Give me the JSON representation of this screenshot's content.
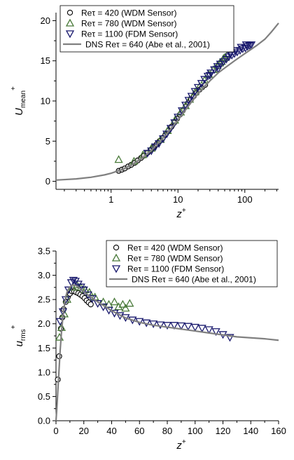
{
  "chart_data": [
    {
      "type": "scatter",
      "x_scale": "log",
      "xlim": [
        0.15,
        320
      ],
      "ylim": [
        -1,
        21
      ],
      "x_ticks": [
        1,
        10,
        100
      ],
      "y_ticks": [
        0,
        5,
        10,
        15,
        20
      ],
      "x_tick_labels": [
        "1",
        "10",
        "100"
      ],
      "y_tick_labels": [
        "0",
        "5",
        "10",
        "15",
        "20"
      ],
      "xlabel": "z",
      "xlabel_sup": "+",
      "ylabel": "U",
      "ylabel_sub": "mean",
      "ylabel_sup": "+",
      "legend_position": "top-left",
      "series": [
        {
          "name": "Reτ = 420 (WDM Sensor)",
          "marker": "circle",
          "color": "#000000",
          "fill": "#d0d0d0",
          "points": [
            [
              1.3,
              1.3
            ],
            [
              1.45,
              1.45
            ],
            [
              1.6,
              1.6
            ],
            [
              1.8,
              1.85
            ],
            [
              2.0,
              2.05
            ],
            [
              2.25,
              2.3
            ],
            [
              2.5,
              2.6
            ],
            [
              2.8,
              2.9
            ],
            [
              3.1,
              3.2
            ],
            [
              3.5,
              3.55
            ],
            [
              3.9,
              3.9
            ],
            [
              4.3,
              4.2
            ],
            [
              4.8,
              4.6
            ],
            [
              5.3,
              5.0
            ],
            [
              5.9,
              5.4
            ],
            [
              6.5,
              5.8
            ],
            [
              7.2,
              6.3
            ],
            [
              8.0,
              6.8
            ],
            [
              8.8,
              7.3
            ],
            [
              9.7,
              7.8
            ],
            [
              10.7,
              8.3
            ],
            [
              11.8,
              8.8
            ],
            [
              13.0,
              9.3
            ],
            [
              14.3,
              9.8
            ],
            [
              15.7,
              10.2
            ],
            [
              17.3,
              10.6
            ],
            [
              19.0,
              11.0
            ],
            [
              21.0,
              11.4
            ],
            [
              23.0,
              11.7
            ],
            [
              25.5,
              12.0
            ]
          ]
        },
        {
          "name": "Reτ = 780 (WDM Sensor)",
          "marker": "triangle-up",
          "color": "#4a7a3a",
          "points": [
            [
              1.3,
              2.7
            ],
            [
              2.2,
              2.5
            ],
            [
              3.0,
              3.3
            ],
            [
              4.0,
              4.1
            ],
            [
              5.5,
              5.2
            ],
            [
              7.0,
              6.3
            ],
            [
              9.0,
              7.6
            ],
            [
              11.0,
              8.6
            ],
            [
              13.0,
              9.4
            ],
            [
              15.0,
              10.2
            ],
            [
              18.0,
              11.1
            ],
            [
              21.0,
              11.8
            ],
            [
              25.0,
              12.6
            ],
            [
              29.0,
              13.3
            ],
            [
              34.0,
              13.9
            ],
            [
              39.0,
              14.4
            ],
            [
              45.0,
              14.9
            ],
            [
              50.0,
              15.4
            ],
            [
              55.0,
              15.8
            ],
            [
              48.0,
              15.3
            ],
            [
              42.0,
              14.7
            ]
          ]
        },
        {
          "name": "Reτ = 1100 (FDM Sensor)",
          "marker": "triangle-down",
          "color": "#1a1a6e",
          "points": [
            [
              3.5,
              3.5
            ],
            [
              4.0,
              3.8
            ],
            [
              4.6,
              4.3
            ],
            [
              5.2,
              4.7
            ],
            [
              6.0,
              5.3
            ],
            [
              6.8,
              5.9
            ],
            [
              7.8,
              6.6
            ],
            [
              8.9,
              7.3
            ],
            [
              10.0,
              8.0
            ],
            [
              11.5,
              8.8
            ],
            [
              13.0,
              9.5
            ],
            [
              14.5,
              10.1
            ],
            [
              16.0,
              10.6
            ],
            [
              18.0,
              11.2
            ],
            [
              20.0,
              11.7
            ],
            [
              22.5,
              12.2
            ],
            [
              25.0,
              12.7
            ],
            [
              28.0,
              13.1
            ],
            [
              31.0,
              13.5
            ],
            [
              35.0,
              13.9
            ],
            [
              39.0,
              14.3
            ],
            [
              43.0,
              14.6
            ],
            [
              48.0,
              14.9
            ],
            [
              53.0,
              15.2
            ],
            [
              58.0,
              15.5
            ],
            [
              64.0,
              15.7
            ],
            [
              70.0,
              15.9
            ],
            [
              77.0,
              16.1
            ],
            [
              85.0,
              16.3
            ],
            [
              93.0,
              16.5
            ],
            [
              102.0,
              16.6
            ],
            [
              110.0,
              16.8
            ],
            [
              118.0,
              16.9
            ],
            [
              125.0,
              17.0
            ],
            [
              60.0,
              15.9
            ],
            [
              72.0,
              16.3
            ],
            [
              88.0,
              16.7
            ],
            [
              105.0,
              17.0
            ],
            [
              40.0,
              14.0
            ],
            [
              30.0,
              13.2
            ]
          ]
        },
        {
          "name": "DNS Reτ = 640 (Abe et al., 2001)",
          "type": "line",
          "color": "#808080",
          "points": [
            [
              0.15,
              0.15
            ],
            [
              0.3,
              0.3
            ],
            [
              0.5,
              0.5
            ],
            [
              0.8,
              0.8
            ],
            [
              1.0,
              1.0
            ],
            [
              1.5,
              1.5
            ],
            [
              2.0,
              2.0
            ],
            [
              3.0,
              2.95
            ],
            [
              4.0,
              3.85
            ],
            [
              5.0,
              4.7
            ],
            [
              6.0,
              5.4
            ],
            [
              8.0,
              6.6
            ],
            [
              10.0,
              7.6
            ],
            [
              12.0,
              8.5
            ],
            [
              15.0,
              9.6
            ],
            [
              20.0,
              10.9
            ],
            [
              25.0,
              11.8
            ],
            [
              30.0,
              12.5
            ],
            [
              40.0,
              13.5
            ],
            [
              50.0,
              14.1
            ],
            [
              70.0,
              15.0
            ],
            [
              100.0,
              15.9
            ],
            [
              150.0,
              16.9
            ],
            [
              200.0,
              17.7
            ],
            [
              250.0,
              18.6
            ],
            [
              320.0,
              19.7
            ]
          ]
        }
      ]
    },
    {
      "type": "scatter",
      "xlim": [
        0,
        160
      ],
      "ylim": [
        0,
        3.5
      ],
      "x_ticks": [
        0,
        20,
        40,
        60,
        80,
        100,
        120,
        140,
        160
      ],
      "y_ticks": [
        0.0,
        0.5,
        1.0,
        1.5,
        2.0,
        2.5,
        3.0,
        3.5
      ],
      "x_tick_labels": [
        "0",
        "20",
        "40",
        "60",
        "80",
        "100",
        "120",
        "140",
        "160"
      ],
      "y_tick_labels": [
        "0.0",
        "0.5",
        "1.0",
        "1.5",
        "2.0",
        "2.5",
        "3.0",
        "3.5"
      ],
      "xlabel": "z",
      "xlabel_sup": "+",
      "ylabel": "u",
      "ylabel_sub": "rms",
      "ylabel_sup": "+",
      "legend_position": "top-right",
      "series": [
        {
          "name": "Reτ = 420 (WDM Sensor)",
          "marker": "circle",
          "color": "#000000",
          "fill": "#ffffff",
          "points": [
            [
              1.3,
              0.85
            ],
            [
              2.3,
              1.33
            ],
            [
              3.5,
              1.9
            ],
            [
              4.5,
              2.13
            ],
            [
              5.5,
              2.3
            ],
            [
              7.0,
              2.45
            ],
            [
              8.5,
              2.55
            ],
            [
              10.0,
              2.62
            ],
            [
              11.5,
              2.67
            ],
            [
              13.0,
              2.67
            ],
            [
              14.5,
              2.65
            ],
            [
              16.0,
              2.63
            ],
            [
              17.5,
              2.6
            ],
            [
              19.0,
              2.57
            ],
            [
              20.5,
              2.53
            ],
            [
              22.0,
              2.48
            ],
            [
              23.5,
              2.44
            ],
            [
              25.0,
              2.4
            ]
          ]
        },
        {
          "name": "Reτ = 780 (WDM Sensor)",
          "marker": "triangle-up",
          "color": "#4a7a3a",
          "points": [
            [
              2.5,
              1.72
            ],
            [
              4.0,
              1.92
            ],
            [
              6.0,
              2.2
            ],
            [
              8.0,
              2.5
            ],
            [
              12.0,
              2.75
            ],
            [
              15.0,
              2.8
            ],
            [
              18.0,
              2.75
            ],
            [
              21.0,
              2.7
            ],
            [
              24.0,
              2.65
            ],
            [
              28.0,
              2.55
            ],
            [
              34.0,
              2.45
            ],
            [
              38.0,
              2.4
            ],
            [
              42.0,
              2.45
            ],
            [
              45.0,
              2.35
            ],
            [
              48.0,
              2.4
            ],
            [
              50.0,
              2.32
            ],
            [
              53.0,
              2.42
            ]
          ]
        },
        {
          "name": "Reτ = 1100 (FDM Sensor)",
          "marker": "triangle-down",
          "color": "#1a1a6e",
          "points": [
            [
              3.0,
              2.05
            ],
            [
              5.0,
              2.25
            ],
            [
              7.0,
              2.5
            ],
            [
              9.0,
              2.7
            ],
            [
              11.0,
              2.85
            ],
            [
              12.5,
              2.9
            ],
            [
              14.0,
              2.88
            ],
            [
              16.0,
              2.82
            ],
            [
              18.0,
              2.76
            ],
            [
              20.0,
              2.7
            ],
            [
              23.0,
              2.6
            ],
            [
              26.0,
              2.52
            ],
            [
              30.0,
              2.42
            ],
            [
              34.0,
              2.35
            ],
            [
              38.0,
              2.28
            ],
            [
              42.0,
              2.22
            ],
            [
              46.0,
              2.17
            ],
            [
              50.0,
              2.13
            ],
            [
              55.0,
              2.08
            ],
            [
              60.0,
              2.05
            ],
            [
              65.0,
              2.02
            ],
            [
              70.0,
              2.0
            ],
            [
              75.0,
              1.98
            ],
            [
              80.0,
              1.97
            ],
            [
              85.0,
              1.97
            ],
            [
              90.0,
              1.96
            ],
            [
              95.0,
              1.95
            ],
            [
              100.0,
              1.93
            ],
            [
              105.0,
              1.91
            ],
            [
              110.0,
              1.88
            ],
            [
              115.0,
              1.84
            ],
            [
              120.0,
              1.78
            ],
            [
              125.0,
              1.72
            ]
          ]
        },
        {
          "name": "DNS Reτ = 640 (Abe et al., 2001)",
          "type": "line",
          "color": "#808080",
          "points": [
            [
              0.0,
              0.0
            ],
            [
              0.5,
              0.2
            ],
            [
              1.0,
              0.45
            ],
            [
              2.0,
              0.95
            ],
            [
              3.0,
              1.45
            ],
            [
              4.0,
              1.85
            ],
            [
              5.0,
              2.15
            ],
            [
              6.0,
              2.38
            ],
            [
              7.0,
              2.55
            ],
            [
              8.0,
              2.66
            ],
            [
              9.0,
              2.72
            ],
            [
              10.0,
              2.76
            ],
            [
              12.0,
              2.8
            ],
            [
              14.0,
              2.79
            ],
            [
              16.0,
              2.76
            ],
            [
              20.0,
              2.66
            ],
            [
              25.0,
              2.55
            ],
            [
              30.0,
              2.45
            ],
            [
              40.0,
              2.27
            ],
            [
              50.0,
              2.12
            ],
            [
              60.0,
              2.03
            ],
            [
              70.0,
              1.97
            ],
            [
              80.0,
              1.93
            ],
            [
              90.0,
              1.89
            ],
            [
              100.0,
              1.85
            ],
            [
              110.0,
              1.81
            ],
            [
              120.0,
              1.77
            ],
            [
              130.0,
              1.73
            ],
            [
              140.0,
              1.71
            ],
            [
              150.0,
              1.69
            ],
            [
              160.0,
              1.66
            ]
          ]
        }
      ]
    }
  ]
}
